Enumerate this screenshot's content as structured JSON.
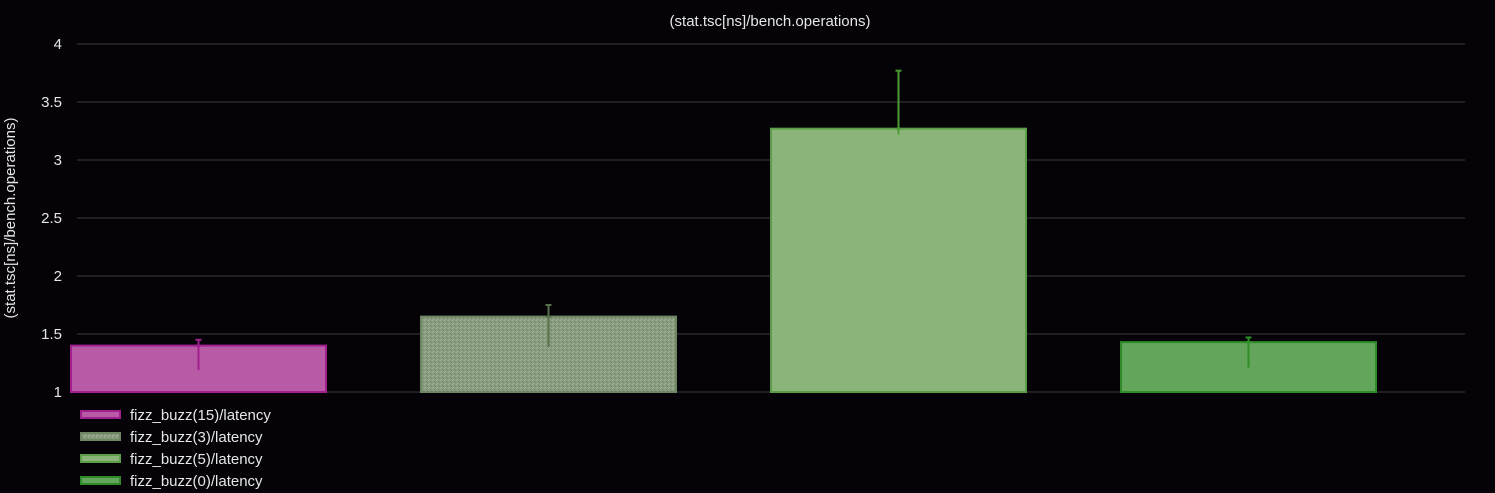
{
  "chart_data": {
    "type": "bar",
    "title": "(stat.tsc[ns]/bench.operations)",
    "ylabel": "(stat.tsc[ns]/bench.operations)",
    "xlabel": "",
    "ylim": [
      1,
      4
    ],
    "yticks": [
      1,
      1.5,
      2,
      2.5,
      3,
      3.5,
      4
    ],
    "ytick_labels": [
      "1",
      "1.5",
      "2",
      "2.5",
      "3",
      "3.5",
      "4"
    ],
    "grid": true,
    "legend_position": "bottom-left",
    "series": [
      {
        "name": "fizz_buzz(15)/latency",
        "value": 1.4,
        "error_low": 1.19,
        "error_high": 1.45,
        "color": "#b85aa6",
        "border": "#a0208e",
        "error_color": "#a0208e",
        "pattern": "solid"
      },
      {
        "name": "fizz_buzz(3)/latency",
        "value": 1.65,
        "error_low": 1.39,
        "error_high": 1.75,
        "color": "#8a9c80",
        "border": "#6e8763",
        "error_color": "#55704a",
        "pattern": "speckle"
      },
      {
        "name": "fizz_buzz(5)/latency",
        "value": 3.27,
        "error_low": 3.22,
        "error_high": 3.77,
        "color": "#8ab47a",
        "border": "#5c9e48",
        "error_color": "#4c9a35",
        "pattern": "solid"
      },
      {
        "name": "fizz_buzz(0)/latency",
        "value": 1.43,
        "error_low": 1.21,
        "error_high": 1.47,
        "color": "#63a55a",
        "border": "#2f8a2a",
        "error_color": "#2d8f26",
        "pattern": "solid"
      }
    ],
    "colors": {
      "background": "#050307",
      "grid": "#3a3a3a",
      "text": "#e6e6e6"
    }
  }
}
